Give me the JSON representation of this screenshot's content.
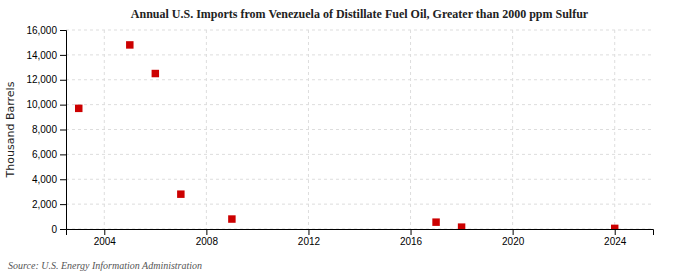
{
  "chart_data": {
    "type": "scatter",
    "title": "Annual U.S. Imports from Venezuela of Distillate Fuel Oil, Greater than 2000 ppm Sulfur",
    "ylabel": "Thousand Barrels",
    "source": "Source: U.S. Energy Information Administration",
    "x": [
      2003,
      2005,
      2006,
      2007,
      2009,
      2017,
      2018,
      2024
    ],
    "values": [
      9700,
      14800,
      12500,
      2800,
      800,
      550,
      150,
      50
    ],
    "color": "#cc0000",
    "marker": "square",
    "xlim": [
      2002.5,
      2025.5
    ],
    "ylim": [
      0,
      16000
    ],
    "xticks": [
      2004,
      2008,
      2012,
      2016,
      2020,
      2024
    ],
    "yticks": [
      0,
      {
        "value": 2000,
        "label": "2,000"
      },
      {
        "value": 4000,
        "label": "4,000"
      },
      {
        "value": 6000,
        "label": "6,000"
      },
      {
        "value": 8000,
        "label": "8,000"
      },
      {
        "value": 10000,
        "label": "10,000"
      },
      {
        "value": 12000,
        "label": "12,000"
      },
      {
        "value": 14000,
        "label": "14,000"
      },
      {
        "value": 16000,
        "label": "16,000"
      }
    ],
    "grid": true
  }
}
